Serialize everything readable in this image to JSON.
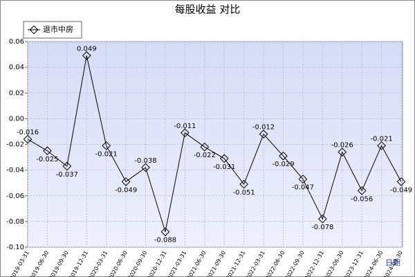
{
  "chart_data": {
    "type": "line",
    "title": "每股收益 对比",
    "x_label": "日期",
    "categories": [
      "2019-03-31",
      "2019-06-30",
      "2019-09-30",
      "2019-12-31",
      "2020-03-31",
      "2020-06-30",
      "2020-09-30",
      "2020-12-31",
      "2021-03-31",
      "2021-06-30",
      "2021-09-30",
      "2021-12-31",
      "2022-03-31",
      "2022-06-30",
      "2022-09-30",
      "2022-12-31",
      "2023-06-30",
      "2023-12-31",
      "2024-06-30",
      "2024-09-30"
    ],
    "series": [
      {
        "name": "退市中房",
        "color": "#000000",
        "values": [
          -0.016,
          -0.025,
          -0.037,
          0.049,
          -0.021,
          -0.049,
          -0.038,
          -0.088,
          -0.011,
          -0.022,
          -0.031,
          -0.051,
          -0.012,
          -0.029,
          -0.047,
          -0.078,
          -0.026,
          -0.056,
          -0.021,
          -0.049
        ]
      }
    ],
    "ylim": [
      -0.1,
      0.06
    ],
    "yticks": [
      {
        "value": 0.06,
        "label": "0.06"
      },
      {
        "value": 0.04,
        "label": "0.04"
      },
      {
        "value": 0.02,
        "label": "0.02"
      },
      {
        "value": 0,
        "label": "0.00"
      },
      {
        "value": -0.02,
        "label": "-0.02"
      },
      {
        "value": -0.04,
        "label": "-0.04"
      },
      {
        "value": -0.06,
        "label": "-0.06"
      },
      {
        "value": -0.08,
        "label": "-0.08"
      },
      {
        "value": -0.1,
        "label": "-0.10"
      }
    ],
    "grid": true
  }
}
